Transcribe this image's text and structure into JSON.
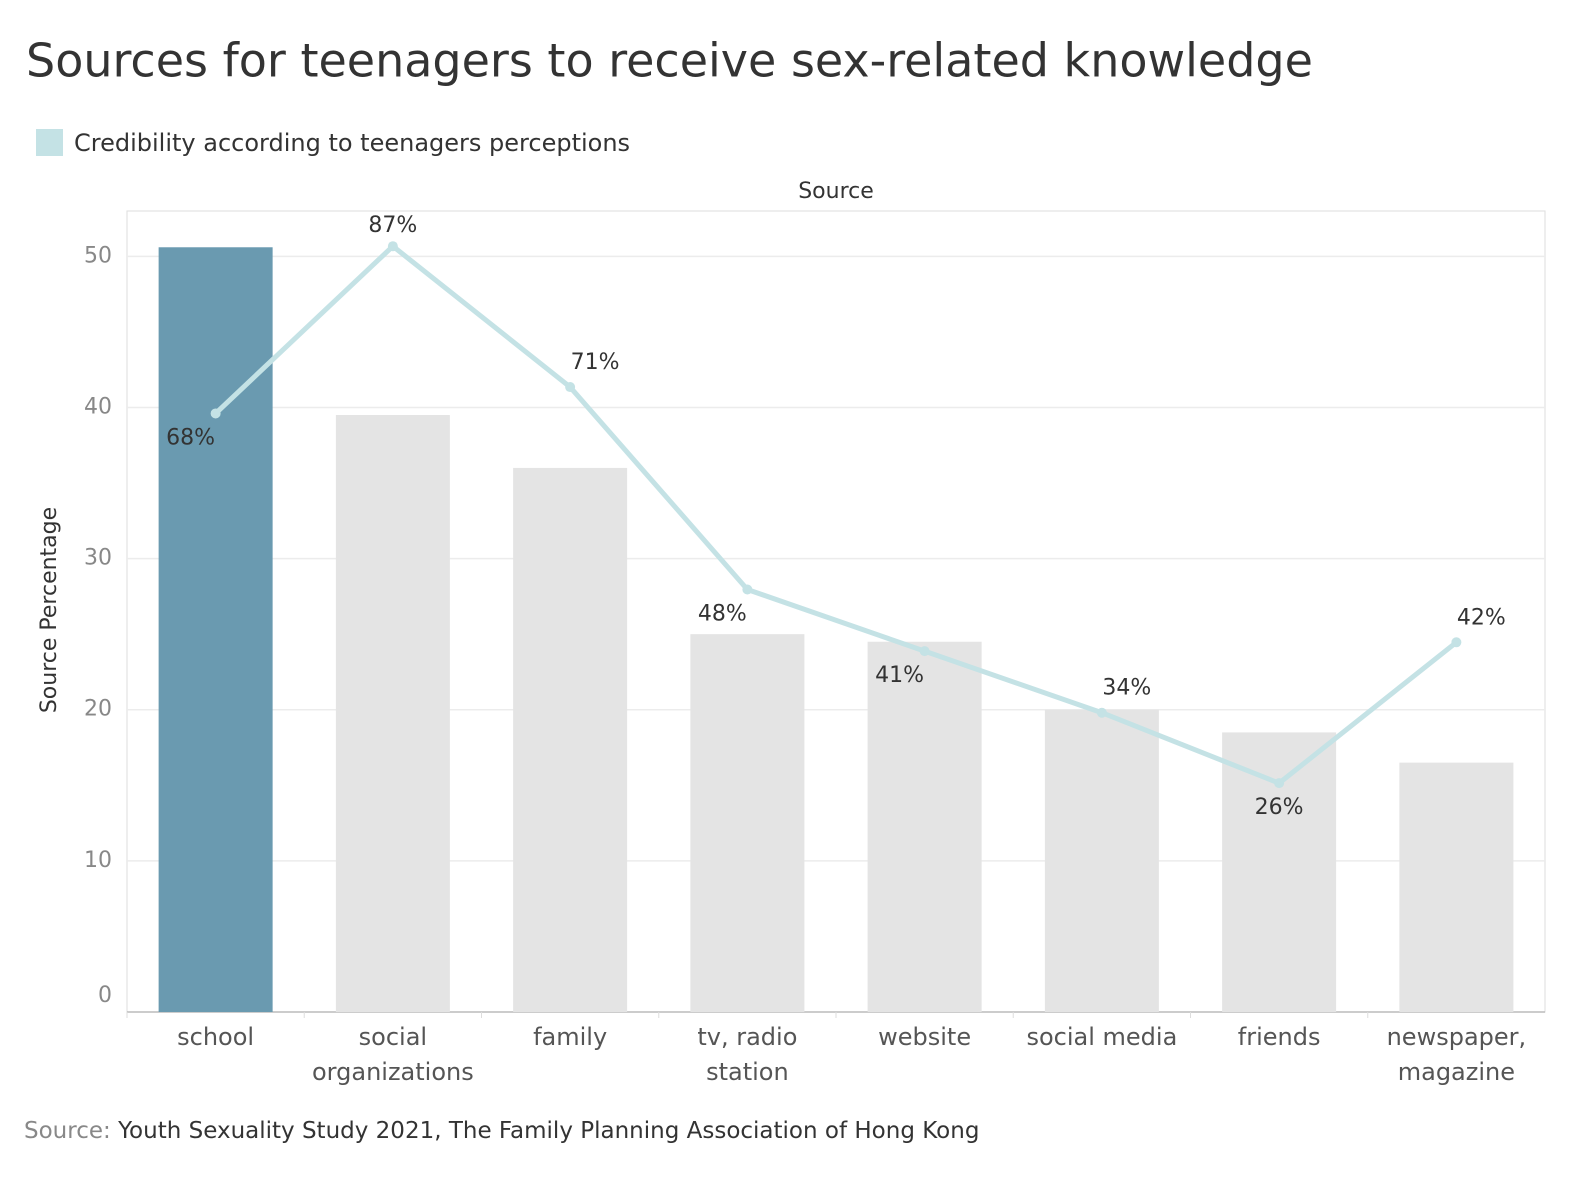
{
  "chart_data": {
    "type": "bar-line",
    "title": "Sources for teenagers to receive sex-related knowledge",
    "x_label": "Source",
    "y_label": "Source Percentage",
    "categories": [
      "school",
      "social organizations",
      "family",
      "tv, radio station",
      "website",
      "social media",
      "friends",
      "newspaper, magazine"
    ],
    "series": [
      {
        "type": "bar",
        "colors": [
          "#6a9ab0",
          "#e4e4e4",
          "#e4e4e4",
          "#e4e4e4",
          "#e4e4e4",
          "#e4e4e4",
          "#e4e4e4",
          "#e4e4e4"
        ],
        "values": [
          50.6,
          39.5,
          36,
          25,
          24.5,
          20,
          18.5,
          16.5
        ]
      },
      {
        "type": "line",
        "name": "Credibility according to teenagers perceptions",
        "color": "#c4e2e5",
        "axis": "y2",
        "values": [
          68,
          87,
          71,
          48,
          41,
          34,
          26,
          42
        ],
        "value_labels": [
          "68%",
          "87%",
          "71%",
          "48%",
          "41%",
          "34%",
          "26%",
          "42%"
        ]
      }
    ],
    "ylim": [
      0,
      53
    ],
    "yticks": [
      0,
      10,
      20,
      30,
      40,
      50
    ],
    "y2lim": [
      0,
      91
    ],
    "grid": true,
    "legend": "top-left",
    "source_label": "Source:",
    "source_text": "Youth Sexuality Study 2021, The Family Planning Association of Hong Kong"
  }
}
